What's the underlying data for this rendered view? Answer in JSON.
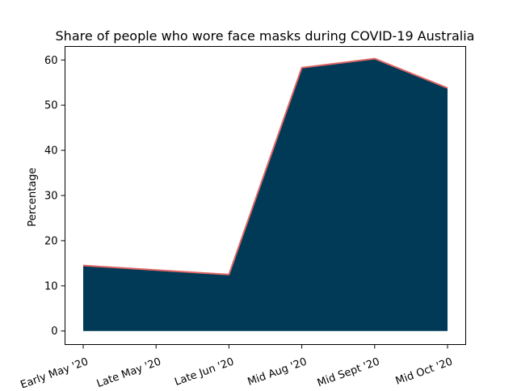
{
  "chart_data": {
    "type": "area",
    "title": "Share of people who wore face masks during COVID-19 Australia",
    "xlabel": "",
    "ylabel": "Percentage",
    "categories": [
      "Early May '20",
      "Late May '20",
      "Late Jun '20",
      "Mid Aug '20",
      "Mid Sept '20",
      "Mid Oct '20"
    ],
    "series": [
      {
        "values": [
          14.5,
          null,
          12.5,
          58.3,
          60.3,
          53.8
        ],
        "fill_color": "#003a57",
        "line_color": "#e06666"
      }
    ],
    "ylim": [
      -3,
      63
    ],
    "yticks": [
      0,
      10,
      20,
      30,
      40,
      50,
      60
    ],
    "grid": false,
    "legend": "none"
  }
}
